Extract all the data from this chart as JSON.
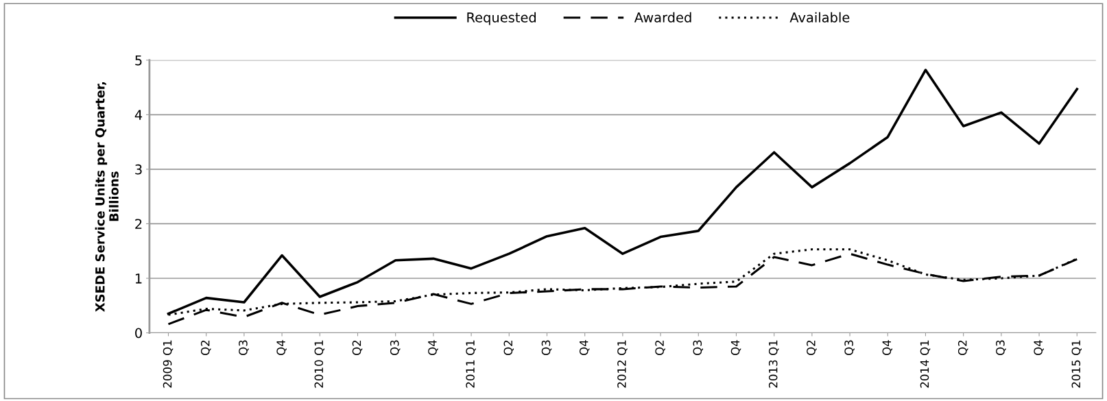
{
  "chart_data": {
    "type": "line",
    "ylabel": "XSEDE Service Units per Quarter,\nBillions",
    "categories": [
      "2009 Q1",
      "Q2",
      "Q3",
      "Q4",
      "2010 Q1",
      "Q2",
      "Q3",
      "Q4",
      "2011 Q1",
      "Q2",
      "Q3",
      "Q4",
      "2012 Q1",
      "Q2",
      "Q3",
      "Q4",
      "2013 Q1",
      "Q2",
      "Q3",
      "Q4",
      "2014 Q1",
      "Q2",
      "Q3",
      "Q4",
      "2015 Q1"
    ],
    "series": [
      {
        "name": "Requested",
        "color": "#000000",
        "line_style": "solid",
        "values": [
          0.35,
          0.64,
          0.56,
          1.42,
          0.66,
          0.93,
          1.33,
          1.36,
          1.18,
          1.45,
          1.77,
          1.92,
          1.45,
          1.76,
          1.87,
          2.67,
          3.31,
          2.67,
          3.11,
          3.59,
          4.82,
          3.79,
          4.04,
          3.47,
          4.47
        ]
      },
      {
        "name": "Awarded",
        "color": "#000000",
        "line_style": "dashed",
        "values": [
          0.16,
          0.42,
          0.29,
          0.55,
          0.33,
          0.49,
          0.55,
          0.71,
          0.53,
          0.73,
          0.76,
          0.8,
          0.8,
          0.85,
          0.83,
          0.85,
          1.39,
          1.24,
          1.45,
          1.25,
          1.08,
          0.95,
          1.03,
          1.05,
          1.35
        ]
      },
      {
        "name": "Available",
        "color": "#000000",
        "line_style": "dotted",
        "values": [
          0.33,
          0.44,
          0.41,
          0.53,
          0.55,
          0.56,
          0.58,
          0.7,
          0.73,
          0.74,
          0.8,
          0.78,
          0.82,
          0.84,
          0.9,
          0.94,
          1.45,
          1.53,
          1.53,
          1.33,
          1.07,
          0.97,
          1.0,
          1.05,
          1.36
        ]
      }
    ],
    "ylim": [
      0,
      5
    ],
    "yticks": [
      0,
      1,
      2,
      3,
      4,
      5
    ],
    "grid": "y",
    "legend": "top",
    "marker": "none"
  }
}
